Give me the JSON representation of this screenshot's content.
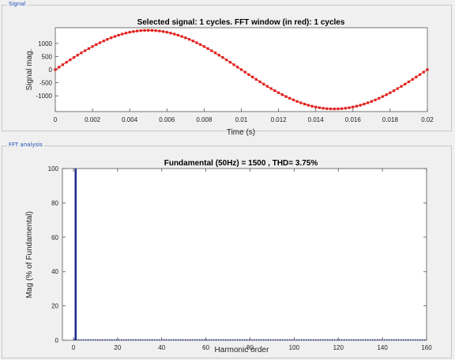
{
  "panels": {
    "signal_title": "Signal",
    "fft_title": "FFT analysis"
  },
  "chart_data": [
    {
      "type": "line",
      "title": "Selected signal: 1 cycles. FFT window (in red): 1 cycles",
      "xlabel": "Time (s)",
      "ylabel": "Signal mag.",
      "xlim": [
        0,
        0.02
      ],
      "ylim": [
        -1600,
        1600
      ],
      "xticks": [
        0,
        0.002,
        0.004,
        0.006,
        0.008,
        0.01,
        0.012,
        0.014,
        0.016,
        0.018,
        0.02
      ],
      "xtick_labels": [
        "0",
        "0.002",
        "0.004",
        "0.006",
        "0.008",
        "0.01",
        "0.012",
        "0.014",
        "0.016",
        "0.018",
        "0.02"
      ],
      "yticks": [
        1000,
        500,
        0,
        -500,
        -1000
      ],
      "ytick_labels": [
        "1000",
        "500",
        "0",
        "-500",
        "-1000"
      ],
      "series": [
        {
          "frequency_hz": 50,
          "amplitude": 1500,
          "samples": 100,
          "color": "#e0201c"
        }
      ],
      "grid": false
    },
    {
      "type": "bar",
      "title": "Fundamental (50Hz) = 1500 , THD= 3.75%",
      "xlabel": "Harmonic order",
      "ylabel": "Mag (% of Fundamental)",
      "xlim": [
        -5,
        160
      ],
      "ylim": [
        0,
        100
      ],
      "xticks": [
        0,
        20,
        40,
        60,
        80,
        100,
        120,
        140,
        160
      ],
      "xtick_labels": [
        "0",
        "20",
        "40",
        "60",
        "80",
        "100",
        "120",
        "140",
        "160"
      ],
      "yticks": [
        0,
        20,
        40,
        60,
        80,
        100
      ],
      "ytick_labels": [
        "0",
        "20",
        "40",
        "60",
        "80",
        "100"
      ],
      "bars": [
        {
          "x": 1,
          "value": 100
        }
      ],
      "bar_color": "#1f2d8f",
      "grid": false
    }
  ]
}
